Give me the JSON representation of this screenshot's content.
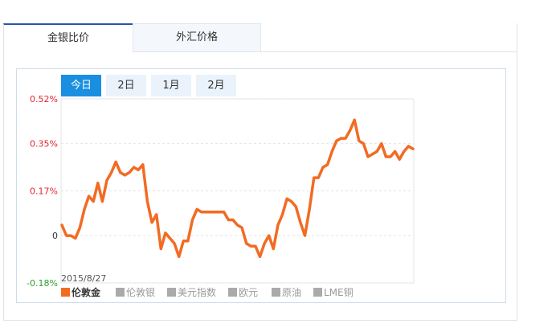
{
  "tabs": [
    {
      "label": "金银比价",
      "active": true
    },
    {
      "label": "外汇价格",
      "active": false
    }
  ],
  "range_buttons": [
    {
      "label": "今日",
      "active": true
    },
    {
      "label": "2日",
      "active": false
    },
    {
      "label": "1月",
      "active": false
    },
    {
      "label": "2月",
      "active": false
    }
  ],
  "colors": {
    "accent": "#1a8fe0",
    "series": "#f26b23",
    "positive": "#e0262f",
    "negative": "#2da12d",
    "inactive": "#aaaaaa"
  },
  "chart_data": {
    "type": "line",
    "date_label": "2015/8/27",
    "y_ticks": [
      {
        "label": "0.52%",
        "value": 0.52,
        "color": "#e0262f"
      },
      {
        "label": "0.35%",
        "value": 0.35,
        "color": "#e0262f"
      },
      {
        "label": "0.17%",
        "value": 0.17,
        "color": "#e0262f"
      },
      {
        "label": "0",
        "value": 0,
        "color": "#333333"
      },
      {
        "label": "-0.18%",
        "value": -0.18,
        "color": "#2da12d"
      }
    ],
    "ylim": [
      -0.18,
      0.52
    ],
    "grid": true,
    "legend_position": "bottom-left",
    "series": [
      {
        "name": "伦敦金",
        "active": true,
        "values": [
          0.04,
          0.0,
          0.0,
          -0.01,
          0.03,
          0.1,
          0.15,
          0.13,
          0.2,
          0.13,
          0.21,
          0.24,
          0.28,
          0.24,
          0.23,
          0.24,
          0.26,
          0.25,
          0.27,
          0.13,
          0.05,
          0.08,
          -0.05,
          0.01,
          -0.01,
          -0.03,
          -0.08,
          -0.02,
          -0.02,
          0.06,
          0.1,
          0.09,
          0.09,
          0.09,
          0.09,
          0.09,
          0.09,
          0.06,
          0.06,
          0.04,
          0.03,
          -0.03,
          -0.04,
          -0.04,
          -0.08,
          -0.03,
          0.0,
          -0.05,
          0.04,
          0.08,
          0.14,
          0.13,
          0.11,
          0.05,
          0.0,
          0.1,
          0.22,
          0.22,
          0.26,
          0.27,
          0.32,
          0.36,
          0.37,
          0.37,
          0.4,
          0.44,
          0.36,
          0.35,
          0.3,
          0.31,
          0.32,
          0.35,
          0.3,
          0.3,
          0.32,
          0.29,
          0.32,
          0.34,
          0.33
        ]
      },
      {
        "name": "伦敦银",
        "active": false
      },
      {
        "name": "美元指数",
        "active": false
      },
      {
        "name": "欧元",
        "active": false
      },
      {
        "name": "原油",
        "active": false
      },
      {
        "name": "LME铜",
        "active": false
      }
    ]
  }
}
